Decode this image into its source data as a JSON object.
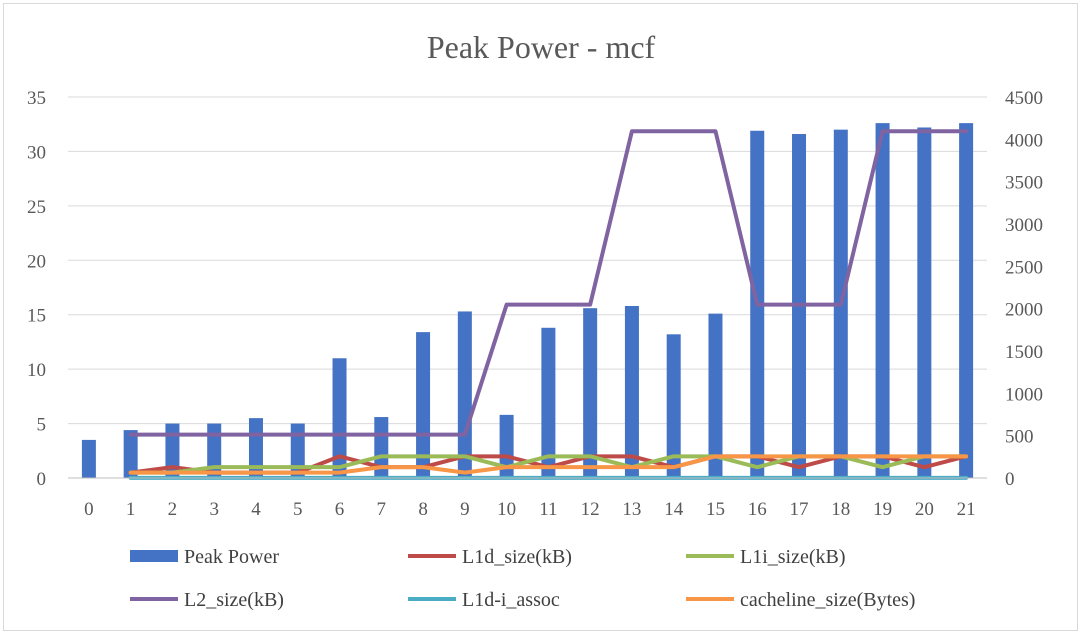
{
  "chart_data": {
    "type": "bar",
    "title": "Peak Power - mcf",
    "categories": [
      "0",
      "1",
      "2",
      "3",
      "4",
      "5",
      "6",
      "7",
      "8",
      "9",
      "10",
      "11",
      "12",
      "13",
      "14",
      "15",
      "16",
      "17",
      "18",
      "19",
      "20",
      "21"
    ],
    "y_left": {
      "min": 0,
      "max": 35,
      "ticks": [
        "0",
        "5",
        "10",
        "15",
        "20",
        "25",
        "30",
        "35"
      ]
    },
    "y_right": {
      "min": 0,
      "max": 4500,
      "ticks": [
        "0",
        "500",
        "1000",
        "1500",
        "2000",
        "2500",
        "3000",
        "3500",
        "4000",
        "4500"
      ]
    },
    "grid": true,
    "legend_position": "bottom",
    "bar_series": {
      "name": "Peak Power",
      "color": "#4472c4",
      "axis": "left",
      "values": [
        3.5,
        4.4,
        5.0,
        5.0,
        5.5,
        5.0,
        11.0,
        5.6,
        13.4,
        15.3,
        5.8,
        13.8,
        15.6,
        15.8,
        13.2,
        15.1,
        31.9,
        31.6,
        32.0,
        32.6,
        32.2,
        32.6
      ]
    },
    "line_series": [
      {
        "name": "L1d_size(kB)",
        "color": "#be4b48",
        "axis": "right",
        "values": [
          null,
          64,
          128,
          64,
          64,
          64,
          256,
          128,
          128,
          256,
          256,
          128,
          256,
          256,
          128,
          256,
          256,
          128,
          256,
          256,
          128,
          256
        ]
      },
      {
        "name": "L1i_size(kB)",
        "color": "#9bbb59",
        "axis": "right",
        "values": [
          null,
          64,
          64,
          128,
          128,
          128,
          128,
          256,
          256,
          256,
          128,
          256,
          256,
          128,
          256,
          256,
          128,
          256,
          256,
          128,
          256,
          256
        ]
      },
      {
        "name": "L2_size(kB)",
        "color": "#8064a2",
        "axis": "right",
        "values": [
          null,
          512,
          512,
          512,
          512,
          512,
          512,
          512,
          512,
          512,
          2048,
          2048,
          2048,
          4096,
          4096,
          4096,
          2048,
          2048,
          2048,
          4096,
          4096,
          4096
        ]
      },
      {
        "name": "L1d-i_assoc",
        "color": "#4bacc6",
        "axis": "right",
        "values": [
          null,
          2,
          2,
          2,
          2,
          2,
          2,
          2,
          2,
          2,
          2,
          2,
          2,
          2,
          2,
          2,
          2,
          2,
          2,
          2,
          2,
          2
        ]
      },
      {
        "name": "cacheline_size(Bytes)",
        "color": "#f79646",
        "axis": "right",
        "values": [
          null,
          64,
          64,
          64,
          64,
          64,
          64,
          128,
          128,
          64,
          128,
          128,
          128,
          128,
          128,
          256,
          256,
          256,
          256,
          256,
          256,
          256
        ]
      }
    ]
  }
}
